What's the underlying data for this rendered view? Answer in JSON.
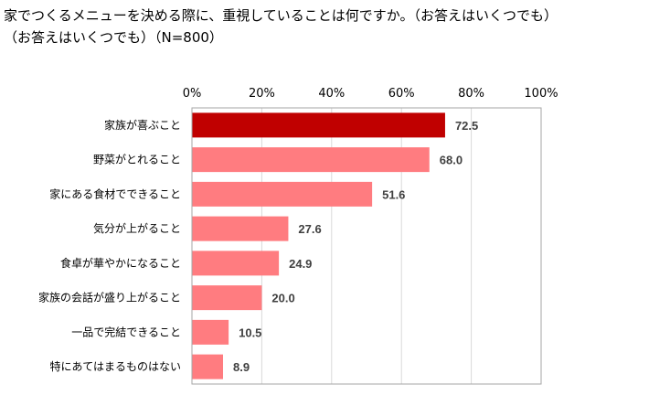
{
  "title_line1": "家でつくるメニューを決める際に、重視していることは何ですか。（お答えはいくつでも）",
  "title_line2": "（お答えはいくつでも）（N=800）",
  "chart_data": {
    "type": "bar",
    "orientation": "horizontal",
    "categories": [
      "家族が喜ぶこと",
      "野菜がとれること",
      "家にある食材でできること",
      "気分が上がること",
      "食卓が華やかになること",
      "家族の会話が盛り上がること",
      "一品で完結できること",
      "特にあてはまるものはない"
    ],
    "values": [
      72.5,
      68.0,
      51.6,
      27.6,
      24.9,
      20.0,
      10.5,
      8.9
    ],
    "value_labels": [
      "72.5",
      "68.0",
      "51.6",
      "27.6",
      "24.9",
      "20.0",
      "10.5",
      "8.9"
    ],
    "tick_labels": [
      "0%",
      "20%",
      "40%",
      "60%",
      "80%",
      "100%"
    ],
    "xlim": [
      0,
      100
    ],
    "grid": true,
    "axis_position": "top",
    "colors": {
      "highlight": "#C00000",
      "bar": "#FF7C80",
      "grid": "#D9D9D9",
      "axis": "#A6A6A6"
    }
  }
}
